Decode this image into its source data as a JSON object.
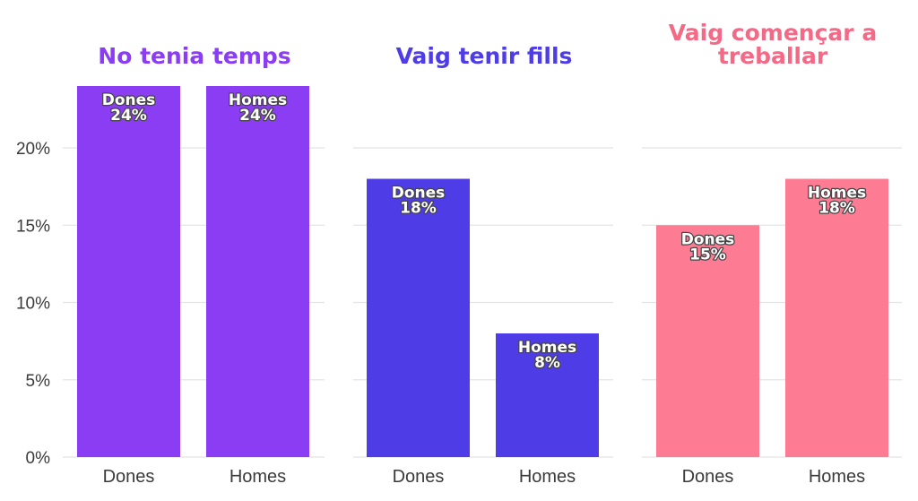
{
  "chart_data": {
    "type": "bar",
    "y_ticks": [
      {
        "value": 0,
        "label": "0%"
      },
      {
        "value": 5,
        "label": "5%"
      },
      {
        "value": 10,
        "label": "10%"
      },
      {
        "value": 15,
        "label": "15%"
      },
      {
        "value": 20,
        "label": "20%"
      }
    ],
    "ylim": [
      0,
      24
    ],
    "grid": true,
    "panels": [
      {
        "title": [
          "No tenia temps"
        ],
        "color": "#8a3df2",
        "categories": [
          "Dones",
          "Homes"
        ],
        "values": [
          24,
          24
        ],
        "bar_labels": [
          [
            "Dones",
            "24%"
          ],
          [
            "Homes",
            "24%"
          ]
        ]
      },
      {
        "title": [
          "Vaig tenir fills"
        ],
        "color": "#4e3ce6",
        "categories": [
          "Dones",
          "Homes"
        ],
        "values": [
          18,
          8
        ],
        "bar_labels": [
          [
            "Dones",
            "18%"
          ],
          [
            "Homes",
            "8%"
          ]
        ]
      },
      {
        "title": [
          "Vaig començar a",
          "treballar"
        ],
        "color": "#fd7b93",
        "title_color": "#f26a86",
        "categories": [
          "Dones",
          "Homes"
        ],
        "values": [
          15,
          18
        ],
        "bar_labels": [
          [
            "Dones",
            "15%"
          ],
          [
            "Homes",
            "18%"
          ]
        ]
      }
    ]
  }
}
